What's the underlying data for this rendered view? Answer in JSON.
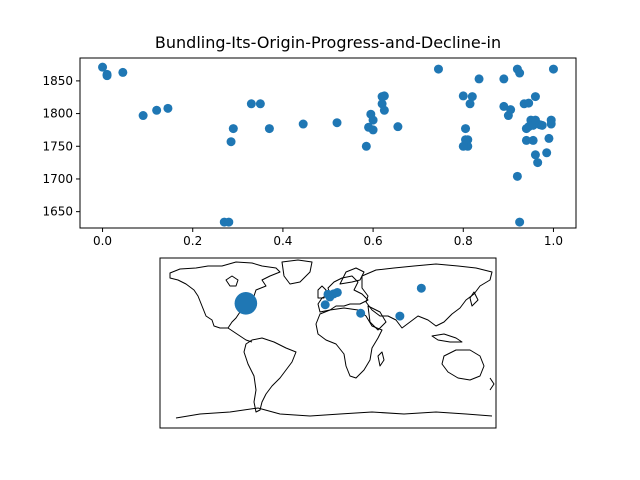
{
  "chart_data": [
    {
      "type": "scatter",
      "title": "Bundling-Its-Origin-Progress-and-Decline-in",
      "xlabel": "",
      "ylabel": "",
      "xlim": [
        -0.05,
        1.05
      ],
      "ylim": [
        1625,
        1885
      ],
      "xticks": [
        "0.0",
        "0.2",
        "0.4",
        "0.6",
        "0.8",
        "1.0"
      ],
      "yticks": [
        "1650",
        "1700",
        "1750",
        "1800",
        "1850"
      ],
      "color": "#1f77b4",
      "x": [
        0.0,
        0.01,
        0.01,
        0.045,
        0.09,
        0.12,
        0.145,
        0.27,
        0.28,
        0.285,
        0.29,
        0.33,
        0.35,
        0.37,
        0.445,
        0.52,
        0.585,
        0.59,
        0.595,
        0.6,
        0.6,
        0.62,
        0.62,
        0.625,
        0.625,
        0.655,
        0.745,
        0.8,
        0.805,
        0.81,
        0.81,
        0.8,
        0.805,
        0.815,
        0.82,
        0.835,
        0.89,
        0.89,
        0.9,
        0.905,
        0.92,
        0.925,
        0.92,
        0.925,
        0.935,
        0.94,
        0.94,
        0.945,
        0.945,
        0.95,
        0.955,
        0.955,
        0.96,
        0.96,
        0.96,
        0.965,
        0.97,
        0.975,
        0.985,
        0.99,
        0.995,
        0.995,
        1.0
      ],
      "y": [
        1871,
        1860,
        1858,
        1863,
        1797,
        1805,
        1808,
        1634,
        1634,
        1757,
        1777,
        1815,
        1815,
        1777,
        1784,
        1786,
        1750,
        1779,
        1799,
        1790,
        1775,
        1815,
        1826,
        1827,
        1805,
        1780,
        1868,
        1827,
        1777,
        1760,
        1750,
        1750,
        1760,
        1815,
        1826,
        1853,
        1811,
        1853,
        1797,
        1806,
        1868,
        1862,
        1704,
        1634,
        1815,
        1777,
        1759,
        1816,
        1780,
        1790,
        1759,
        1782,
        1826,
        1790,
        1737,
        1725,
        1783,
        1782,
        1740,
        1762,
        1790,
        1784,
        1868
      ],
      "grid": false
    },
    {
      "type": "scatter",
      "subtype": "world-map-bubbles",
      "color": "#1f77b4",
      "points": [
        {
          "lon": -88,
          "lat": 42,
          "size": 3
        },
        {
          "lon": 0,
          "lat": 51.5,
          "size": 1
        },
        {
          "lon": 2,
          "lat": 48.8,
          "size": 1
        },
        {
          "lon": 6,
          "lat": 52,
          "size": 1
        },
        {
          "lon": 10,
          "lat": 53.5,
          "size": 1
        },
        {
          "lon": -3,
          "lat": 40.5,
          "size": 1
        },
        {
          "lon": 35,
          "lat": 31.5,
          "size": 1
        },
        {
          "lon": 77,
          "lat": 28.5,
          "size": 1
        },
        {
          "lon": 100,
          "lat": 58,
          "size": 1
        }
      ]
    }
  ]
}
